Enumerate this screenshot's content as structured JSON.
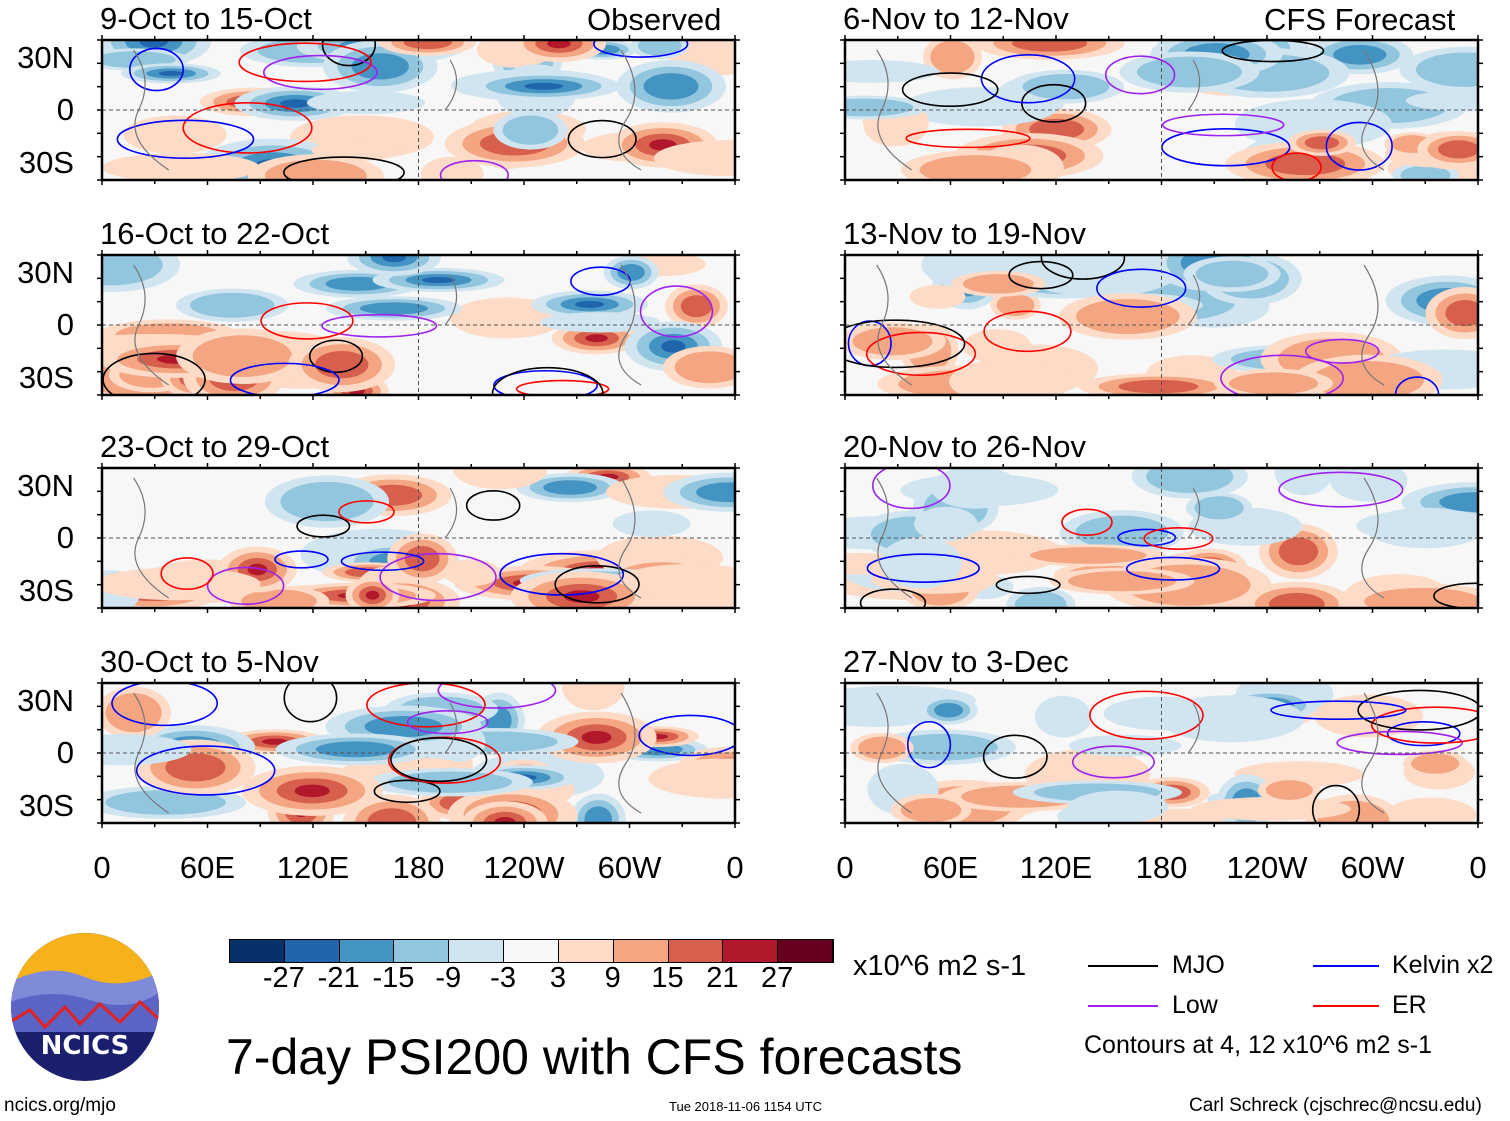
{
  "header": {
    "observed_label": "Observed",
    "forecast_label": "CFS Forecast"
  },
  "panels": {
    "observed": [
      {
        "title": "9-Oct to 15-Oct"
      },
      {
        "title": "16-Oct to 22-Oct"
      },
      {
        "title": "23-Oct to 29-Oct"
      },
      {
        "title": "30-Oct to 5-Nov"
      }
    ],
    "forecast": [
      {
        "title": "6-Nov to 12-Nov"
      },
      {
        "title": "13-Nov to 19-Nov"
      },
      {
        "title": "20-Nov to 26-Nov"
      },
      {
        "title": "27-Nov to 3-Dec"
      }
    ]
  },
  "lat_labels": [
    "30N",
    "0",
    "30S"
  ],
  "lon_labels": [
    "0",
    "60E",
    "120E",
    "180",
    "120W",
    "60W",
    "0"
  ],
  "colorbar": {
    "colors": [
      "#08306b",
      "#2166ac",
      "#4393c3",
      "#92c5de",
      "#d1e5f0",
      "#f7f7f7",
      "#fddbc7",
      "#f4a582",
      "#d6604d",
      "#b2182b",
      "#67001f"
    ],
    "ticks": [
      "-27",
      "-21",
      "-15",
      "-9",
      "-3",
      "3",
      "9",
      "15",
      "21",
      "27"
    ],
    "units": "x10^6 m2 s-1"
  },
  "legend": {
    "items": [
      {
        "label": "MJO",
        "color": "#000000"
      },
      {
        "label": "Kelvin x2",
        "color": "#0000ff"
      },
      {
        "label": "Low",
        "color": "#a020f0"
      },
      {
        "label": "ER",
        "color": "#ff0000"
      }
    ],
    "contours_note": "Contours at 4, 12 x10^6 m2 s-1"
  },
  "main_title": "7-day PSI200 with CFS forecasts",
  "logo": {
    "text": "NCICS"
  },
  "footer": {
    "url": "ncics.org/mjo",
    "timestamp": "Tue 2018-11-06 1154 UTC",
    "author": "Carl Schreck (cjschrec@ncsu.edu)"
  }
}
